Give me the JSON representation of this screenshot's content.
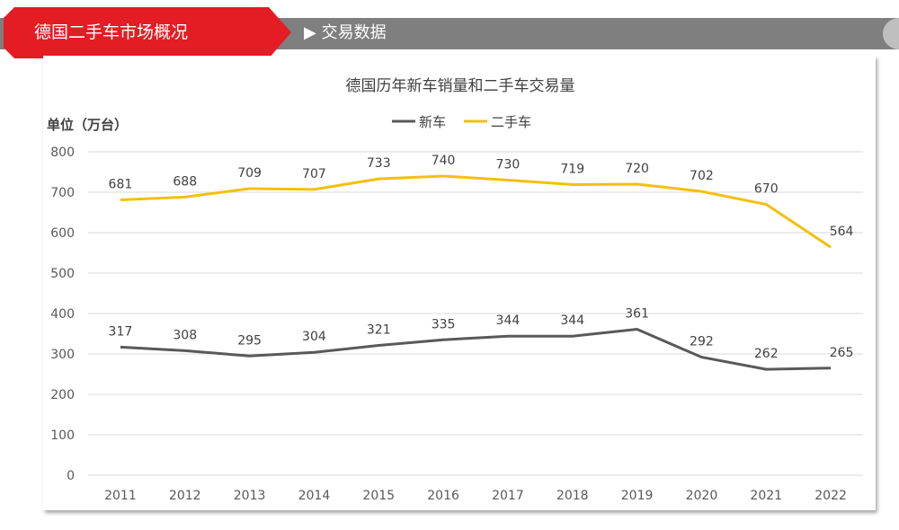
{
  "header": {
    "section_title": "德国二手车市场概况",
    "subsection": "▶ 交易数据"
  },
  "chart_data": {
    "type": "line",
    "title": "德国历年新车销量和二手车交易量",
    "ylabel": "单位（万台）",
    "xlabel": "",
    "ylim": [
      0,
      800
    ],
    "yticks": [
      0,
      100,
      200,
      300,
      400,
      500,
      600,
      700,
      800
    ],
    "grid": true,
    "legend_placement": "top-center",
    "categories": [
      "2011",
      "2012",
      "2013",
      "2014",
      "2015",
      "2016",
      "2017",
      "2018",
      "2019",
      "2020",
      "2021",
      "2022"
    ],
    "series": [
      {
        "name": "新车",
        "color": "#595959",
        "values": [
          317,
          308,
          295,
          304,
          321,
          335,
          344,
          344,
          361,
          292,
          262,
          265
        ]
      },
      {
        "name": "二手车",
        "color": "#f2c00f",
        "values": [
          681,
          688,
          709,
          707,
          733,
          740,
          730,
          719,
          720,
          702,
          670,
          564
        ]
      }
    ]
  }
}
